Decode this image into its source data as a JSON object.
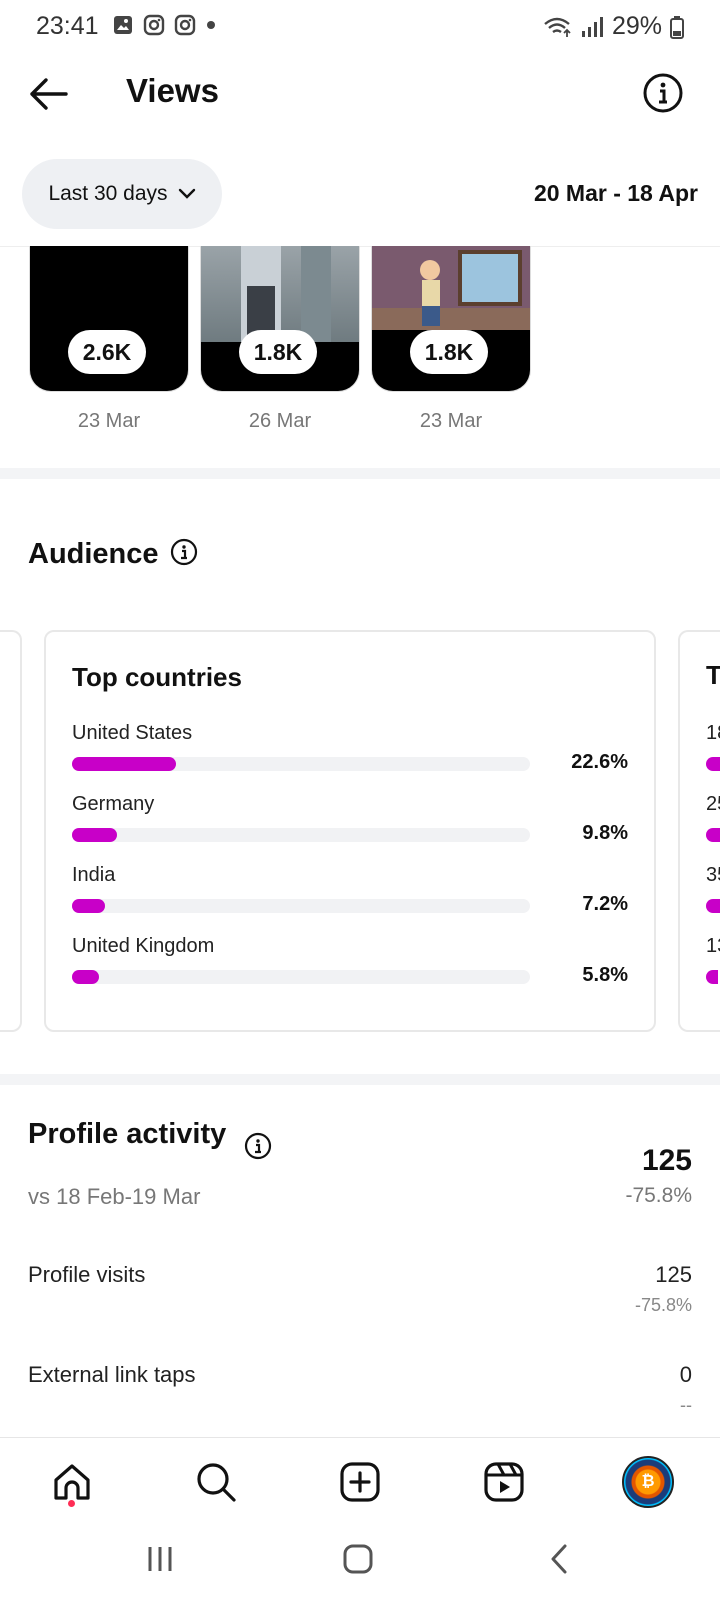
{
  "status_bar": {
    "time": "23:41",
    "battery": "29%"
  },
  "header": {
    "title": "Views"
  },
  "filter": {
    "range_label": "Last 30 days",
    "date_range": "20 Mar - 18 Apr"
  },
  "thumbnails": [
    {
      "views": "2.6K",
      "date": "23 Mar"
    },
    {
      "views": "1.8K",
      "date": "26 Mar"
    },
    {
      "views": "1.8K",
      "date": "23 Mar"
    }
  ],
  "audience": {
    "title": "Audience",
    "top_countries": {
      "title": "Top countries",
      "items": [
        {
          "country": "United States",
          "percent": "22.6%",
          "fraction": 0.226
        },
        {
          "country": "Germany",
          "percent": "9.8%",
          "fraction": 0.098
        },
        {
          "country": "India",
          "percent": "7.2%",
          "fraction": 0.072
        },
        {
          "country": "United Kingdom",
          "percent": "5.8%",
          "fraction": 0.058
        }
      ]
    },
    "next_card": {
      "title_partial": "T",
      "rows_partial": [
        "18",
        "25",
        "35",
        "13"
      ]
    }
  },
  "profile_activity": {
    "title": "Profile activity",
    "comparison": "vs 18 Feb-19 Mar",
    "total": "125",
    "total_change": "-75.8%",
    "rows": [
      {
        "label": "Profile visits",
        "value": "125",
        "change": "-75.8%"
      },
      {
        "label": "External link taps",
        "value": "0",
        "change": "--"
      }
    ]
  },
  "colors": {
    "accent_bar": "#c800c8",
    "notification_dot": "#ff2d55"
  }
}
